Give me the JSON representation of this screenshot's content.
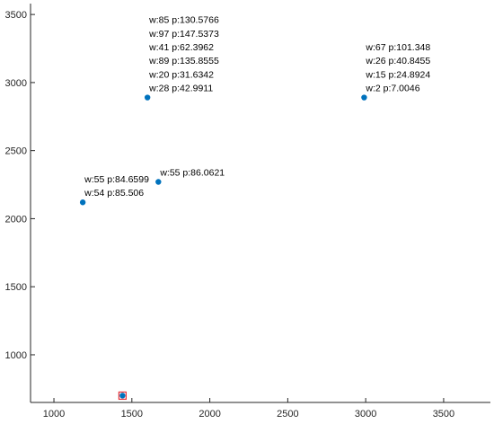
{
  "chart_data": {
    "type": "scatter",
    "title": "",
    "xlabel": "",
    "ylabel": "",
    "xlim": [
      850,
      3800
    ],
    "ylim": [
      650,
      3580
    ],
    "grid": false,
    "legend": "",
    "x_ticks": [
      1000,
      1500,
      2000,
      2500,
      3000,
      3500
    ],
    "y_ticks": [
      1000,
      1500,
      2000,
      2500,
      3000,
      3500
    ],
    "marker_color": "#0072BD",
    "highlight_color": "#E8333A",
    "points": [
      {
        "x": 1600,
        "y": 2890,
        "labels": [
          "w:85 p:130.5766",
          "w:97 p:147.5373",
          "w:41 p:62.3962",
          "w:89 p:135.8555",
          "w:20 p:31.6342",
          "w:28 p:42.9911"
        ]
      },
      {
        "x": 2990,
        "y": 2890,
        "labels": [
          "w:67 p:101.348",
          "w:26 p:40.8455",
          "w:15 p:24.8924",
          "w:2 p:7.0046"
        ]
      },
      {
        "x": 1670,
        "y": 2270,
        "labels": [
          "w:55 p:86.0621"
        ]
      },
      {
        "x": 1185,
        "y": 2120,
        "labels": [
          "w:55 p:84.6599",
          "w:54 p:85.506"
        ]
      },
      {
        "x": 1440,
        "y": 700,
        "labels": [],
        "highlighted": true
      }
    ]
  }
}
